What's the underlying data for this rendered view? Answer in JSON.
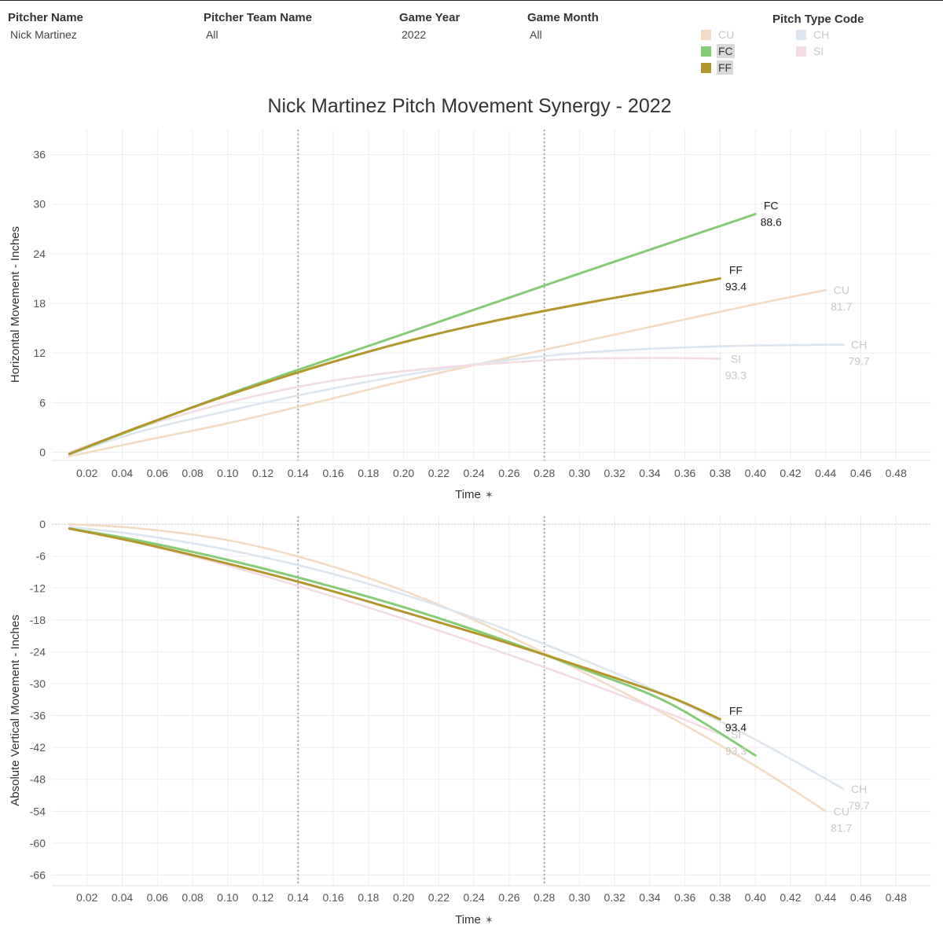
{
  "filters": {
    "pitcher_name": {
      "label": "Pitcher Name",
      "value": "Nick Martinez"
    },
    "team_name": {
      "label": "Pitcher Team Name",
      "value": "All"
    },
    "game_year": {
      "label": "Game Year",
      "value": "2022"
    },
    "game_month": {
      "label": "Game Month",
      "value": "All"
    }
  },
  "legend": {
    "title": "Pitch Type Code",
    "items": [
      {
        "code": "CU",
        "color": "#f3dcc6",
        "active": false
      },
      {
        "code": "CH",
        "color": "#dde6ef",
        "active": false
      },
      {
        "code": "FC",
        "color": "#86cc78",
        "active": true
      },
      {
        "code": "SI",
        "color": "#f3dde2",
        "active": false
      },
      {
        "code": "FF",
        "color": "#b3962e",
        "active": true
      }
    ]
  },
  "chart_data": [
    {
      "type": "line",
      "id": "horizontal",
      "title": "Nick Martinez Pitch Movement Synergy - 2022",
      "xlabel": "Time",
      "ylabel": "Horizontal Movement - Inches",
      "xlim": [
        0,
        0.5
      ],
      "ylim": [
        -1,
        39
      ],
      "xticks": [
        "0.02",
        "0.04",
        "0.06",
        "0.08",
        "0.10",
        "0.12",
        "0.14",
        "0.16",
        "0.18",
        "0.20",
        "0.22",
        "0.24",
        "0.26",
        "0.28",
        "0.30",
        "0.32",
        "0.34",
        "0.36",
        "0.38",
        "0.40",
        "0.42",
        "0.44",
        "0.46",
        "0.48"
      ],
      "yticks": [
        "0",
        "6",
        "12",
        "18",
        "24",
        "30",
        "36"
      ],
      "ref_lines_x": [
        0.14,
        0.28
      ],
      "grid": true,
      "series": [
        {
          "name": "CU",
          "speed": "81.7",
          "x": [
            0.01,
            0.05,
            0.1,
            0.15,
            0.2,
            0.25,
            0.3,
            0.35,
            0.4,
            0.44
          ],
          "y": [
            -0.5,
            1.3,
            3.5,
            6.0,
            8.6,
            11.0,
            13.3,
            15.6,
            17.9,
            19.6
          ]
        },
        {
          "name": "CH",
          "speed": "79.7",
          "x": [
            0.01,
            0.05,
            0.1,
            0.15,
            0.2,
            0.25,
            0.3,
            0.35,
            0.4,
            0.45
          ],
          "y": [
            -0.3,
            2.5,
            5.0,
            7.3,
            9.3,
            10.9,
            12.0,
            12.6,
            12.9,
            13.0
          ]
        },
        {
          "name": "SI",
          "speed": "93.3",
          "x": [
            0.01,
            0.05,
            0.1,
            0.15,
            0.2,
            0.25,
            0.3,
            0.35,
            0.38
          ],
          "y": [
            0,
            3.0,
            6.0,
            8.3,
            9.8,
            10.7,
            11.3,
            11.4,
            11.3
          ]
        },
        {
          "name": "FC",
          "speed": "88.6",
          "x": [
            0.01,
            0.1,
            0.2,
            0.3,
            0.4
          ],
          "y": [
            -0.2,
            7.0,
            14.3,
            21.6,
            28.8
          ]
        },
        {
          "name": "FF",
          "speed": "93.4",
          "x": [
            0.01,
            0.05,
            0.1,
            0.15,
            0.2,
            0.25,
            0.3,
            0.35,
            0.38
          ],
          "y": [
            -0.2,
            3.1,
            6.9,
            10.3,
            13.3,
            15.8,
            17.9,
            19.8,
            21.0
          ]
        }
      ],
      "labels": [
        {
          "series": "FC",
          "code": "FC",
          "speed": "88.6",
          "anchor": [
            0.4,
            28.8
          ],
          "active": true
        },
        {
          "series": "FF",
          "code": "FF",
          "speed": "93.4",
          "anchor": [
            0.38,
            21.0
          ],
          "active": true
        },
        {
          "series": "CU",
          "code": "CU",
          "speed": "81.7",
          "anchor": [
            0.44,
            19.6
          ],
          "active": false
        },
        {
          "series": "CH",
          "code": "CH",
          "speed": "79.7",
          "anchor": [
            0.45,
            13.0
          ],
          "active": false
        },
        {
          "series": "SI",
          "code": "SI",
          "speed": "93.3",
          "anchor": [
            0.38,
            11.3
          ],
          "active": false
        }
      ]
    },
    {
      "type": "line",
      "id": "vertical",
      "xlabel": "Time",
      "ylabel": "Absolute Vertical Movement - Inches",
      "xlim": [
        0,
        0.5
      ],
      "ylim": [
        -68,
        1.5
      ],
      "xticks": [
        "0.02",
        "0.04",
        "0.06",
        "0.08",
        "0.10",
        "0.12",
        "0.14",
        "0.16",
        "0.18",
        "0.20",
        "0.22",
        "0.24",
        "0.26",
        "0.28",
        "0.30",
        "0.32",
        "0.34",
        "0.36",
        "0.38",
        "0.40",
        "0.42",
        "0.44",
        "0.46",
        "0.48"
      ],
      "yticks": [
        "0",
        "-6",
        "-12",
        "-18",
        "-24",
        "-30",
        "-36",
        "-42",
        "-48",
        "-54",
        "-60",
        "-66"
      ],
      "ref_lines_x": [
        0.14,
        0.28
      ],
      "ref_line_y": 0,
      "grid": true,
      "series": [
        {
          "name": "CU",
          "speed": "81.7",
          "x": [
            0.01,
            0.05,
            0.1,
            0.15,
            0.2,
            0.25,
            0.3,
            0.35,
            0.4,
            0.44
          ],
          "y": [
            0,
            -0.8,
            -3.0,
            -7.0,
            -12.5,
            -19.5,
            -27.5,
            -36.0,
            -45.5,
            -54.0
          ]
        },
        {
          "name": "CH",
          "speed": "79.7",
          "x": [
            0.01,
            0.05,
            0.1,
            0.15,
            0.2,
            0.25,
            0.3,
            0.35,
            0.4,
            0.45
          ],
          "y": [
            -0.5,
            -2.0,
            -4.8,
            -8.5,
            -13.2,
            -18.8,
            -25.2,
            -32.3,
            -40.5,
            -49.8
          ]
        },
        {
          "name": "SI",
          "speed": "93.3",
          "x": [
            0.01,
            0.05,
            0.1,
            0.15,
            0.2,
            0.25,
            0.3,
            0.35,
            0.38
          ],
          "y": [
            -0.8,
            -3.6,
            -7.8,
            -12.6,
            -17.8,
            -23.4,
            -29.3,
            -35.5,
            -39.5
          ]
        },
        {
          "name": "FC",
          "speed": "88.6",
          "x": [
            0.01,
            0.05,
            0.1,
            0.15,
            0.2,
            0.25,
            0.3,
            0.35,
            0.4
          ],
          "y": [
            -0.8,
            -3.1,
            -6.7,
            -10.9,
            -15.6,
            -21.0,
            -27.0,
            -33.5,
            -43.5
          ]
        },
        {
          "name": "FF",
          "speed": "93.4",
          "x": [
            0.01,
            0.05,
            0.1,
            0.15,
            0.2,
            0.25,
            0.3,
            0.35,
            0.38
          ],
          "y": [
            -0.8,
            -3.5,
            -7.4,
            -11.7,
            -16.5,
            -21.4,
            -26.7,
            -32.3,
            -36.7
          ]
        }
      ],
      "labels": [
        {
          "series": "FF",
          "code": "FF",
          "speed": "93.4",
          "anchor": [
            0.38,
            -36.7
          ],
          "active": true
        },
        {
          "series": "SI",
          "code": "SI",
          "speed": "93.3",
          "anchor": [
            0.38,
            -39.5
          ],
          "active": false
        },
        {
          "series": "CH",
          "code": "CH",
          "speed": "79.7",
          "anchor": [
            0.45,
            -49.8
          ],
          "active": false
        },
        {
          "series": "CU",
          "code": "CU",
          "speed": "81.7",
          "anchor": [
            0.44,
            -54.0
          ],
          "active": false
        }
      ]
    }
  ]
}
